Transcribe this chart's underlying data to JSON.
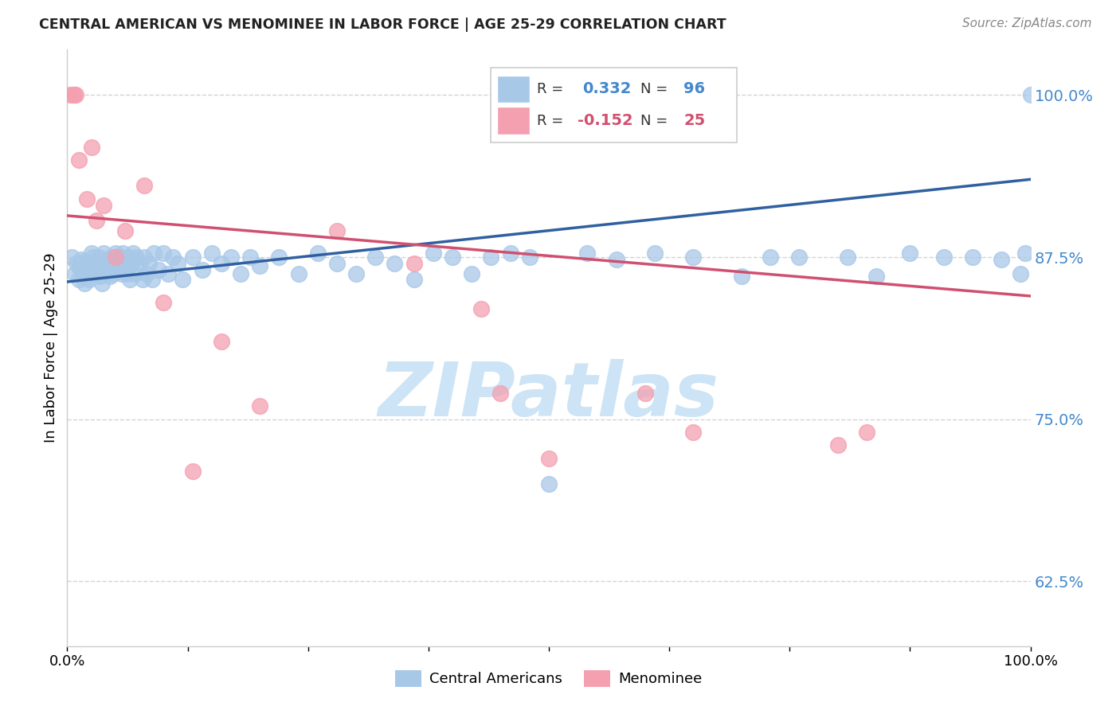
{
  "title": "CENTRAL AMERICAN VS MENOMINEE IN LABOR FORCE | AGE 25-29 CORRELATION CHART",
  "source": "Source: ZipAtlas.com",
  "ylabel": "In Labor Force | Age 25-29",
  "xlim": [
    0.0,
    1.0
  ],
  "ylim": [
    0.575,
    1.035
  ],
  "yticks": [
    0.625,
    0.75,
    0.875,
    1.0
  ],
  "ytick_labels": [
    "62.5%",
    "75.0%",
    "87.5%",
    "100.0%"
  ],
  "r_blue": 0.332,
  "n_blue": 96,
  "r_pink": -0.152,
  "n_pink": 25,
  "blue_color": "#a8c8e8",
  "pink_color": "#f4a0b0",
  "blue_line_color": "#3060a0",
  "pink_line_color": "#d05070",
  "blue_tick_color": "#4488cc",
  "watermark_color": "#cce4f5",
  "blue_line_start_y": 0.856,
  "blue_line_end_y": 0.935,
  "pink_line_start_y": 0.907,
  "pink_line_end_y": 0.845,
  "background_color": "#ffffff",
  "grid_color": "#c8c8c8",
  "blue_scatter_x": [
    0.005,
    0.008,
    0.01,
    0.012,
    0.013,
    0.015,
    0.016,
    0.017,
    0.018,
    0.019,
    0.02,
    0.022,
    0.023,
    0.025,
    0.026,
    0.027,
    0.028,
    0.03,
    0.032,
    0.033,
    0.034,
    0.035,
    0.036,
    0.037,
    0.038,
    0.04,
    0.042,
    0.044,
    0.046,
    0.048,
    0.05,
    0.052,
    0.053,
    0.055,
    0.057,
    0.058,
    0.06,
    0.062,
    0.063,
    0.065,
    0.067,
    0.068,
    0.07,
    0.072,
    0.075,
    0.078,
    0.08,
    0.082,
    0.085,
    0.088,
    0.09,
    0.095,
    0.1,
    0.105,
    0.11,
    0.115,
    0.12,
    0.13,
    0.14,
    0.15,
    0.16,
    0.17,
    0.18,
    0.19,
    0.2,
    0.22,
    0.24,
    0.26,
    0.28,
    0.3,
    0.32,
    0.34,
    0.36,
    0.38,
    0.4,
    0.42,
    0.44,
    0.46,
    0.48,
    0.5,
    0.54,
    0.57,
    0.61,
    0.65,
    0.7,
    0.73,
    0.76,
    0.81,
    0.84,
    0.875,
    0.91,
    0.94,
    0.97,
    0.99,
    0.995,
    1.0
  ],
  "blue_scatter_y": [
    0.875,
    0.862,
    0.87,
    0.858,
    0.867,
    0.873,
    0.862,
    0.868,
    0.855,
    0.872,
    0.865,
    0.87,
    0.858,
    0.878,
    0.863,
    0.875,
    0.862,
    0.87,
    0.865,
    0.875,
    0.86,
    0.872,
    0.855,
    0.868,
    0.878,
    0.865,
    0.872,
    0.86,
    0.875,
    0.862,
    0.878,
    0.865,
    0.87,
    0.875,
    0.862,
    0.878,
    0.87,
    0.862,
    0.875,
    0.858,
    0.87,
    0.878,
    0.862,
    0.875,
    0.87,
    0.858,
    0.875,
    0.862,
    0.87,
    0.858,
    0.878,
    0.865,
    0.878,
    0.862,
    0.875,
    0.87,
    0.858,
    0.875,
    0.865,
    0.878,
    0.87,
    0.875,
    0.862,
    0.875,
    0.868,
    0.875,
    0.862,
    0.878,
    0.87,
    0.862,
    0.875,
    0.87,
    0.858,
    0.878,
    0.875,
    0.862,
    0.875,
    0.878,
    0.875,
    0.7,
    0.878,
    0.873,
    0.878,
    0.875,
    0.86,
    0.875,
    0.875,
    0.875,
    0.86,
    0.878,
    0.875,
    0.875,
    0.873,
    0.862,
    0.878,
    1.0
  ],
  "pink_scatter_x": [
    0.003,
    0.006,
    0.007,
    0.009,
    0.012,
    0.02,
    0.025,
    0.03,
    0.038,
    0.05,
    0.06,
    0.08,
    0.1,
    0.13,
    0.16,
    0.2,
    0.28,
    0.36,
    0.43,
    0.45,
    0.5,
    0.6,
    0.65,
    0.8,
    0.83
  ],
  "pink_scatter_y": [
    1.0,
    1.0,
    1.0,
    1.0,
    0.95,
    0.92,
    0.96,
    0.903,
    0.915,
    0.875,
    0.895,
    0.93,
    0.84,
    0.71,
    0.81,
    0.76,
    0.895,
    0.87,
    0.835,
    0.77,
    0.72,
    0.77,
    0.74,
    0.73,
    0.74
  ]
}
